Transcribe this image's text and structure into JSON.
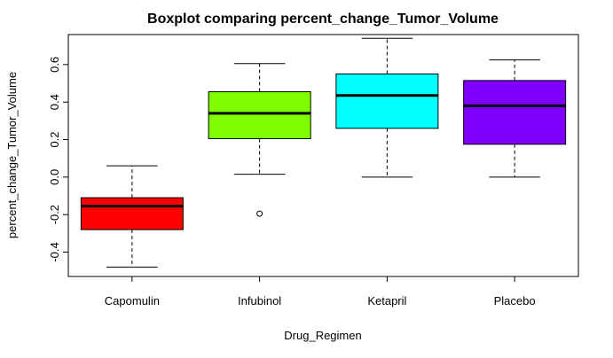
{
  "chart_data": {
    "type": "boxplot",
    "title": "Boxplot comparing percent_change_Tumor_Volume",
    "xlabel": "Drug_Regimen",
    "ylabel": "percent_change_Tumor_Volume",
    "ylim": [
      -0.53,
      0.76
    ],
    "y_ticks": [
      -0.4,
      -0.2,
      0.0,
      0.2,
      0.4,
      0.6
    ],
    "y_tick_labels": [
      "-0.4",
      "-0.2",
      "0.0",
      "0.2",
      "0.4",
      "0.6"
    ],
    "categories": [
      "Capomulin",
      "Infubinol",
      "Ketapril",
      "Placebo"
    ],
    "series": [
      {
        "category": "Capomulin",
        "color": "#FF0000",
        "whisker_low": -0.48,
        "q1": -0.28,
        "median": -0.155,
        "q3": -0.11,
        "whisker_high": 0.06,
        "outliers": []
      },
      {
        "category": "Infubinol",
        "color": "#80FF00",
        "whisker_low": 0.015,
        "q1": 0.205,
        "median": 0.34,
        "q3": 0.455,
        "whisker_high": 0.605,
        "outliers": [
          -0.195
        ]
      },
      {
        "category": "Ketapril",
        "color": "#00FFFF",
        "whisker_low": 0.0,
        "q1": 0.26,
        "median": 0.435,
        "q3": 0.55,
        "whisker_high": 0.74,
        "outliers": []
      },
      {
        "category": "Placebo",
        "color": "#8000FF",
        "whisker_low": 0.0,
        "q1": 0.175,
        "median": 0.38,
        "q3": 0.515,
        "whisker_high": 0.625,
        "outliers": []
      }
    ]
  }
}
